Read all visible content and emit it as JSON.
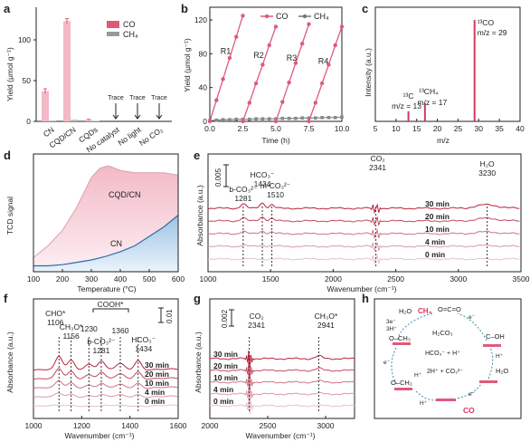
{
  "colors": {
    "co": "#e05a78",
    "ch4": "#888888",
    "fill_red": "#f3b9c6",
    "fill_blue": "#9ec3e3",
    "line_blue": "#2f6ea8",
    "ir_line": "#b8213c",
    "co_text": "#e0305a",
    "ch4_text": "#e0305a"
  },
  "panels": {
    "a": {
      "letter": "a",
      "ylabel": "Yield (μmol g⁻¹)",
      "legend": [
        "CO",
        "CH₄"
      ],
      "trace": "Trace",
      "chart_data": {
        "type": "bar",
        "categories": [
          "CN",
          "CQD/CN",
          "CQDs",
          "No catalyst",
          "No light",
          "No CO₂"
        ],
        "series": [
          {
            "name": "CO",
            "values": [
              37,
              123,
              2,
              0,
              0,
              0
            ],
            "errors": [
              3,
              3,
              0.5,
              0,
              0,
              0
            ]
          },
          {
            "name": "CH₄",
            "values": [
              1,
              2,
              0.5,
              0,
              0,
              0
            ]
          }
        ],
        "ylim": [
          0,
          140
        ],
        "yticks": [
          0,
          50,
          100
        ]
      }
    },
    "b": {
      "letter": "b",
      "ylabel": "Yield (μmol g⁻¹)",
      "xlabel": "Time (h)",
      "legend": [
        "CO",
        "CH₄"
      ],
      "runs": [
        "R1",
        "R2",
        "R3",
        "R4"
      ],
      "chart_data": {
        "type": "line",
        "series": [
          {
            "name": "CO",
            "segments": [
              [
                [
                  0,
                  0
                ],
                [
                  0.5,
                  25
                ],
                [
                  1,
                  50
                ],
                [
                  1.5,
                  75
                ],
                [
                  2,
                  100
                ],
                [
                  2.5,
                  125
                ]
              ],
              [
                [
                  2.5,
                  0
                ],
                [
                  3,
                  22
                ],
                [
                  3.5,
                  45
                ],
                [
                  4,
                  67
                ],
                [
                  4.5,
                  90
                ],
                [
                  5,
                  112
                ]
              ],
              [
                [
                  5,
                  0
                ],
                [
                  5.5,
                  23
                ],
                [
                  6,
                  46
                ],
                [
                  6.5,
                  69
                ],
                [
                  7,
                  92
                ],
                [
                  7.5,
                  115
                ]
              ],
              [
                [
                  7.5,
                  0
                ],
                [
                  8,
                  22
                ],
                [
                  8.5,
                  45
                ],
                [
                  9,
                  67
                ],
                [
                  9.5,
                  90
                ],
                [
                  10,
                  112
                ]
              ]
            ]
          },
          {
            "name": "CH₄",
            "points": [
              [
                0,
                1
              ],
              [
                0.5,
                1.5
              ],
              [
                1,
                2
              ],
              [
                1.5,
                2
              ],
              [
                2,
                2.5
              ],
              [
                2.5,
                2.5
              ],
              [
                3,
                2.5
              ],
              [
                3.5,
                3
              ],
              [
                4,
                3
              ],
              [
                4.5,
                3
              ],
              [
                5,
                3
              ],
              [
                5.5,
                3.5
              ],
              [
                6,
                3.5
              ],
              [
                6.5,
                3.5
              ],
              [
                7,
                4
              ],
              [
                7.5,
                4
              ],
              [
                8,
                4
              ],
              [
                8.5,
                4.5
              ],
              [
                9,
                4.5
              ],
              [
                9.5,
                4.5
              ],
              [
                10,
                5
              ]
            ]
          }
        ],
        "xlim": [
          0,
          10
        ],
        "ylim": [
          0,
          135
        ],
        "xticks": [
          0,
          2.5,
          5,
          7.5,
          10
        ],
        "yticks": [
          0,
          40,
          80,
          120
        ]
      }
    },
    "c": {
      "letter": "c",
      "ylabel": "Intensity (a.u.)",
      "xlabel": "m/z",
      "chart_data": {
        "type": "bar",
        "peaks": [
          {
            "x": 13,
            "height": 0.1,
            "label": "¹³C",
            "sublabel": "m/z = 13"
          },
          {
            "x": 17,
            "height": 0.18,
            "label": "¹³CH₄",
            "sublabel": "m/z = 17"
          },
          {
            "x": 29,
            "height": 1.0,
            "label": "¹³CO",
            "sublabel": "m/z = 29"
          }
        ],
        "xlim": [
          5,
          40
        ],
        "xticks": [
          5,
          10,
          15,
          20,
          25,
          30,
          35,
          40
        ]
      }
    },
    "d": {
      "letter": "d",
      "ylabel": "TCD signal",
      "xlabel": "Temperature (°C)",
      "chart_data": {
        "type": "area",
        "series": [
          {
            "name": "CQD/CN",
            "x": [
              100,
              150,
              200,
              250,
              280,
              300,
              330,
              360,
              400,
              450,
              500,
              550,
              600
            ],
            "y": [
              0.12,
              0.22,
              0.35,
              0.55,
              0.7,
              0.8,
              0.88,
              0.9,
              0.86,
              0.84,
              0.84,
              0.84,
              0.82
            ]
          },
          {
            "name": "CN",
            "x": [
              100,
              150,
              200,
              250,
              300,
              350,
              400,
              450,
              500,
              550,
              600
            ],
            "y": [
              0.05,
              0.05,
              0.06,
              0.08,
              0.1,
              0.13,
              0.17,
              0.22,
              0.3,
              0.38,
              0.48
            ]
          }
        ],
        "xlim": [
          100,
          600
        ],
        "xticks": [
          100,
          200,
          300,
          400,
          500,
          600
        ]
      }
    },
    "e": {
      "letter": "e",
      "ylabel": "Absorbance (a.u.)",
      "xlabel": "Wavenumber (cm⁻¹)",
      "scale": "0.005",
      "times": [
        "30 min",
        "20 min",
        "10 min",
        "4 min",
        "0 min"
      ],
      "annotations": [
        {
          "x": 1281,
          "label": "b-CO₃²⁻",
          "value": "1281"
        },
        {
          "x": 1434,
          "label": "HCO₃⁻",
          "value": "1434"
        },
        {
          "x": 1510,
          "label": "m-CO₃²⁻",
          "value": "1510"
        },
        {
          "x": 2341,
          "label": "CO₂",
          "value": "2341"
        },
        {
          "x": 3230,
          "label": "H₂O",
          "value": "3230"
        }
      ],
      "chart_data": {
        "type": "line",
        "xlim": [
          1000,
          3500
        ],
        "xticks": [
          1000,
          1500,
          2000,
          2500,
          3000,
          3500
        ]
      }
    },
    "f": {
      "letter": "f",
      "ylabel": "Absorbance (a.u.)",
      "xlabel": "Wavenumber (cm⁻¹)",
      "scale": "0.01",
      "times": [
        "30 min",
        "20 min",
        "10 min",
        "4 min",
        "0 min"
      ],
      "bracket": "COOH*",
      "annotations": [
        {
          "x": 1106,
          "label": "CHO*",
          "value": "1106"
        },
        {
          "x": 1156,
          "label": "CH₃O*",
          "value": "1156"
        },
        {
          "x": 1230,
          "label": "",
          "value": "1230"
        },
        {
          "x": 1281,
          "label": "b-CO₃²⁻",
          "value": "1281"
        },
        {
          "x": 1360,
          "label": "",
          "value": "1360"
        },
        {
          "x": 1434,
          "label": "HCO₃⁻",
          "value": "1434"
        }
      ],
      "chart_data": {
        "type": "line",
        "xlim": [
          1000,
          1600
        ],
        "xticks": [
          1000,
          1200,
          1400,
          1600
        ]
      }
    },
    "g": {
      "letter": "g",
      "ylabel": "Absorbance (a.u.)",
      "xlabel": "Wavenumber (cm⁻¹)",
      "scale": "0.002",
      "times": [
        "30 min",
        "20 min",
        "10 min",
        "4 min",
        "0 min"
      ],
      "annotations": [
        {
          "x": 2341,
          "label": "CO₂",
          "value": "2341"
        },
        {
          "x": 2941,
          "label": "CH₃O*",
          "value": "2941"
        }
      ],
      "chart_data": {
        "type": "line",
        "xlim": [
          2000,
          3250
        ],
        "xticks": [
          2000,
          2500,
          3000
        ]
      }
    },
    "h": {
      "letter": "h",
      "labels": {
        "h2o_top": "H₂O",
        "ch4": "CH₄",
        "e3h": "3e⁻",
        "h3": "3H⁺",
        "o_ch3": "O–CH₃",
        "o_ch2": "O–CH₂",
        "h2co3": "H₂CO₃",
        "hco3": "HCO₃⁻ + H⁺",
        "co3": "2H⁺ + CO₃²⁻",
        "oco": "O=C=O",
        "cooh": "C–OH",
        "h2o_right": "H₂O",
        "co": "CO",
        "eminus": "e⁻",
        "hplus": "H⁺"
      }
    }
  }
}
